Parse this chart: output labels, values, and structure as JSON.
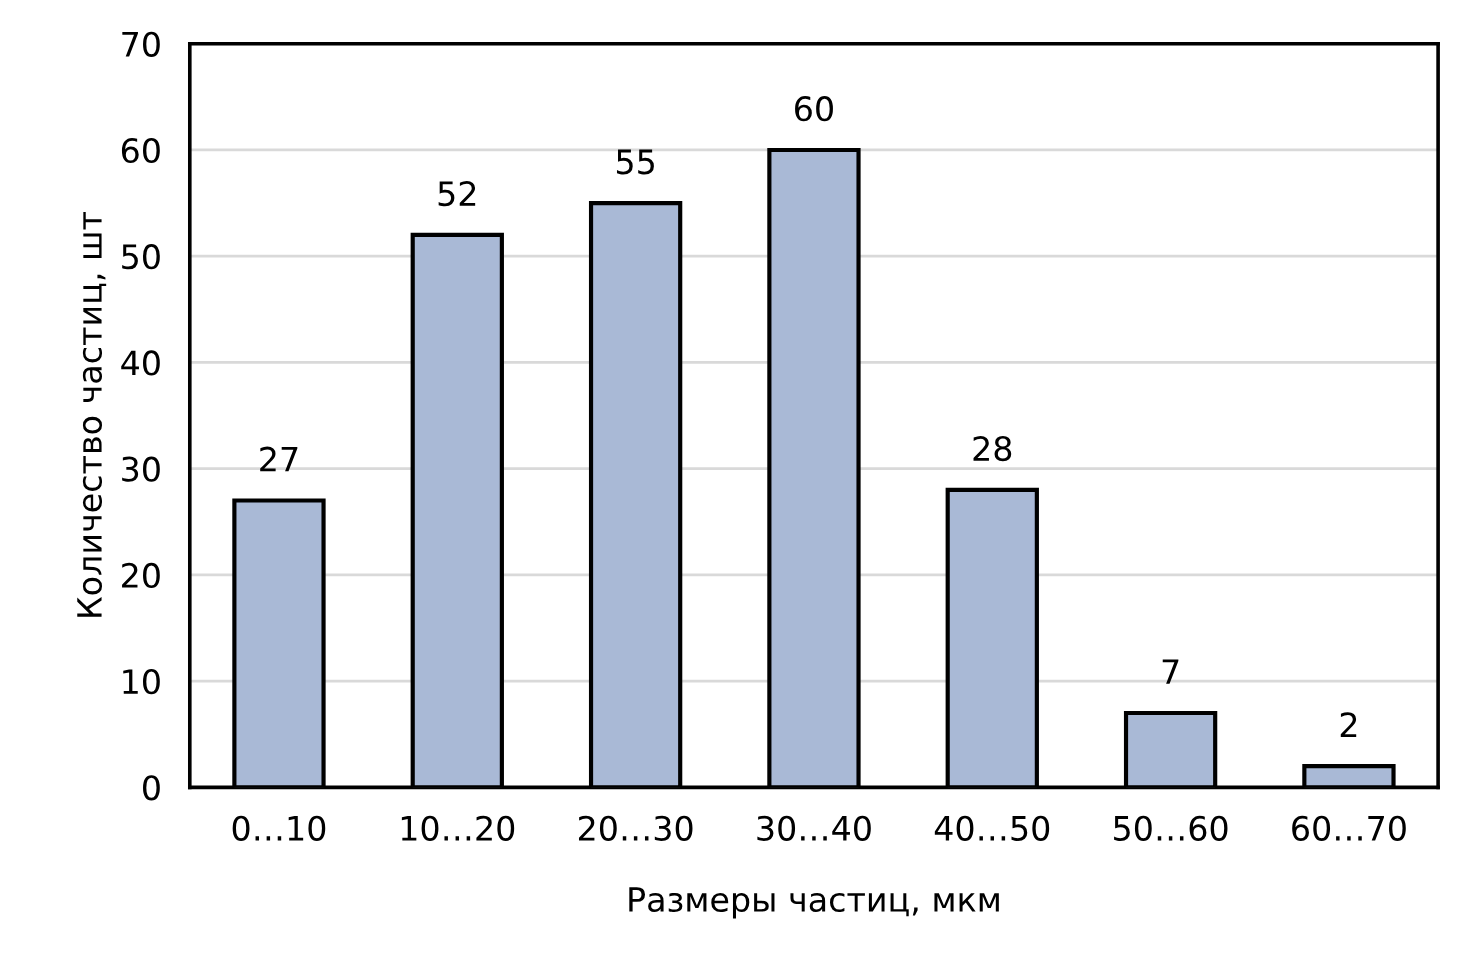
{
  "chart_data": {
    "type": "bar",
    "xlabel": "Размеры частиц, мкм",
    "ylabel": "Количество частиц, шт",
    "categories": [
      "0…10",
      "10…20",
      "20…30",
      "30…40",
      "40…50",
      "50…60",
      "60…70"
    ],
    "values": [
      27,
      52,
      55,
      60,
      28,
      7,
      2
    ],
    "color": "#a9b9d6",
    "ylim": [
      0,
      70
    ],
    "yticks": [
      0,
      10,
      20,
      30,
      40,
      50,
      60,
      70
    ],
    "grid": "y",
    "data_labels": true,
    "legend": false
  }
}
